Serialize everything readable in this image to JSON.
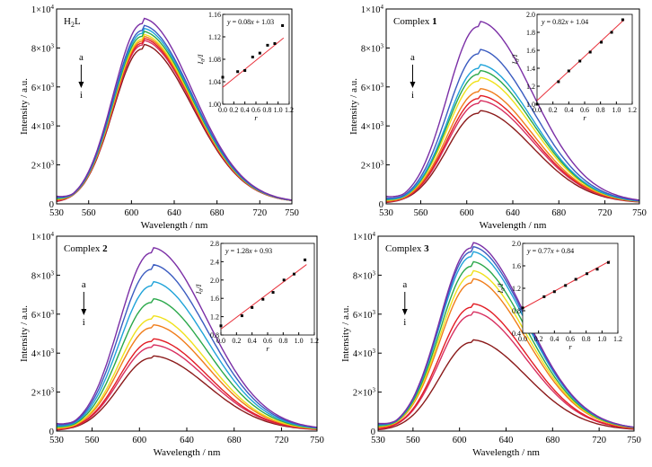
{
  "chart_data": [
    {
      "type": "line",
      "panel_label": "H",
      "panel_label_sub": "2",
      "panel_label_tail": "L",
      "panel_label_bold": "",
      "xlabel": "Wavelength / nm",
      "ylabel": "Intensity / a.u.",
      "xlim": [
        530,
        750
      ],
      "ylim": [
        0,
        10000
      ],
      "xticks": [
        530,
        560,
        600,
        640,
        680,
        720,
        750
      ],
      "ytick_labels": [
        {
          "value": 0,
          "base": "0",
          "exp": ""
        },
        {
          "value": 2000,
          "base": "2×10",
          "exp": "3"
        },
        {
          "value": 4000,
          "base": "4×10",
          "exp": "3"
        },
        {
          "value": 6000,
          "base": "6×10",
          "exp": "3"
        },
        {
          "value": 8000,
          "base": "8×10",
          "exp": "3"
        },
        {
          "value": 10000,
          "base": "1×10",
          "exp": "4"
        }
      ],
      "arrow_top": "a",
      "arrow_bottom": "i",
      "series": [
        {
          "peak": 9250,
          "color": "#7b2fa6"
        },
        {
          "peak": 8900,
          "color": "#3a5bc0"
        },
        {
          "peak": 8750,
          "color": "#1fa3d9"
        },
        {
          "peak": 8600,
          "color": "#2aa84a"
        },
        {
          "peak": 8450,
          "color": "#f0e11c"
        },
        {
          "peak": 8350,
          "color": "#f07d1a"
        },
        {
          "peak": 8250,
          "color": "#e21d25"
        },
        {
          "peak": 8150,
          "color": "#d83060"
        },
        {
          "peak": 7950,
          "color": "#8b1a1a"
        }
      ],
      "inset": {
        "equation_prefix": "y",
        "equation_body": " = 0.08",
        "equation_var": "x",
        "equation_tail": " + 1.03",
        "xlabel": "r",
        "ylabel_base": "I",
        "ylabel_sub": "0",
        "ylabel_tail": "/I",
        "xlim": [
          0.0,
          1.2
        ],
        "ylim": [
          1.0,
          1.16
        ],
        "xticks": [
          0.0,
          0.2,
          0.4,
          0.6,
          0.8,
          1.0,
          1.2
        ],
        "xtick_labels": [
          "0.0",
          "0.2",
          "0.4",
          "0.6",
          "0.8",
          "1.0",
          "1.2"
        ],
        "yticks": [
          1.0,
          1.04,
          1.08,
          1.12,
          1.16
        ],
        "ytick_labels": [
          "1.00",
          "1.04",
          "1.08",
          "1.12",
          "1.16"
        ],
        "slope": 0.08,
        "intercept": 1.03,
        "points": [
          {
            "x": 0.0,
            "y": 1.048
          },
          {
            "x": 0.27,
            "y": 1.058
          },
          {
            "x": 0.4,
            "y": 1.06
          },
          {
            "x": 0.54,
            "y": 1.084
          },
          {
            "x": 0.67,
            "y": 1.091
          },
          {
            "x": 0.81,
            "y": 1.105
          },
          {
            "x": 0.94,
            "y": 1.108
          },
          {
            "x": 1.08,
            "y": 1.14
          }
        ]
      }
    },
    {
      "type": "line",
      "panel_label": "Complex ",
      "panel_label_sub": "",
      "panel_label_tail": "",
      "panel_label_bold": "1",
      "xlabel": "Wavelength / nm",
      "ylabel": "Intensity / a.u.",
      "xlim": [
        530,
        750
      ],
      "ylim": [
        0,
        10000
      ],
      "xticks": [
        530,
        560,
        600,
        640,
        680,
        720,
        750
      ],
      "ytick_labels": [
        {
          "value": 0,
          "base": "0",
          "exp": ""
        },
        {
          "value": 2000,
          "base": "2×10",
          "exp": "3"
        },
        {
          "value": 4000,
          "base": "4×10",
          "exp": "3"
        },
        {
          "value": 6000,
          "base": "6×10",
          "exp": "3"
        },
        {
          "value": 8000,
          "base": "8×10",
          "exp": "3"
        },
        {
          "value": 10000,
          "base": "1×10",
          "exp": "4"
        }
      ],
      "arrow_top": "a",
      "arrow_bottom": "i",
      "series": [
        {
          "peak": 9100,
          "color": "#7b2fa6"
        },
        {
          "peak": 7700,
          "color": "#3a5bc0"
        },
        {
          "peak": 6950,
          "color": "#1fa3d9"
        },
        {
          "peak": 6650,
          "color": "#2aa84a"
        },
        {
          "peak": 6300,
          "color": "#f0e11c"
        },
        {
          "peak": 5750,
          "color": "#f07d1a"
        },
        {
          "peak": 5400,
          "color": "#e21d25"
        },
        {
          "peak": 5150,
          "color": "#d83060"
        },
        {
          "peak": 4650,
          "color": "#8b1a1a"
        }
      ],
      "inset": {
        "equation_prefix": "y",
        "equation_body": " = 0.82",
        "equation_var": "x",
        "equation_tail": " + 1.04",
        "xlabel": "r",
        "ylabel_base": "I",
        "ylabel_sub": "0",
        "ylabel_tail": "/I",
        "xlim": [
          0.0,
          1.2
        ],
        "ylim": [
          1.0,
          2.0
        ],
        "xticks": [
          0.0,
          0.2,
          0.4,
          0.6,
          0.8,
          1.0,
          1.2
        ],
        "xtick_labels": [
          "0.0",
          "0.2",
          "0.4",
          "0.6",
          "0.8",
          "1.0",
          "1.2"
        ],
        "yticks": [
          1.0,
          1.2,
          1.4,
          1.6,
          1.8,
          2.0
        ],
        "ytick_labels": [
          "1.0",
          "1.2",
          "1.4",
          "1.6",
          "1.8",
          "2.0"
        ],
        "slope": 0.82,
        "intercept": 1.04,
        "points": [
          {
            "x": 0.0,
            "y": 1.0
          },
          {
            "x": 0.27,
            "y": 1.25
          },
          {
            "x": 0.4,
            "y": 1.37
          },
          {
            "x": 0.54,
            "y": 1.48
          },
          {
            "x": 0.67,
            "y": 1.58
          },
          {
            "x": 0.81,
            "y": 1.69
          },
          {
            "x": 0.94,
            "y": 1.8
          },
          {
            "x": 1.08,
            "y": 1.94
          }
        ]
      }
    },
    {
      "type": "line",
      "panel_label": "Complex ",
      "panel_label_sub": "",
      "panel_label_tail": "",
      "panel_label_bold": "2",
      "xlabel": "Wavelength / nm",
      "ylabel": "Intensity / a.u.",
      "xlim": [
        530,
        750
      ],
      "ylim": [
        0,
        10000
      ],
      "xticks": [
        530,
        560,
        600,
        640,
        680,
        720,
        750
      ],
      "ytick_labels": [
        {
          "value": 0,
          "base": "0",
          "exp": ""
        },
        {
          "value": 2000,
          "base": "2×10",
          "exp": "3"
        },
        {
          "value": 4000,
          "base": "4×10",
          "exp": "3"
        },
        {
          "value": 6000,
          "base": "6×10",
          "exp": "3"
        },
        {
          "value": 8000,
          "base": "8×10",
          "exp": "3"
        },
        {
          "value": 10000,
          "base": "1×10",
          "exp": "4"
        }
      ],
      "arrow_top": "a",
      "arrow_bottom": "i",
      "series": [
        {
          "peak": 9150,
          "color": "#7b2fa6"
        },
        {
          "peak": 8300,
          "color": "#3a5bc0"
        },
        {
          "peak": 7450,
          "color": "#1fa3d9"
        },
        {
          "peak": 6600,
          "color": "#2aa84a"
        },
        {
          "peak": 5750,
          "color": "#f0e11c"
        },
        {
          "peak": 5300,
          "color": "#f07d1a"
        },
        {
          "peak": 4600,
          "color": "#e21d25"
        },
        {
          "peak": 4300,
          "color": "#d83060"
        },
        {
          "peak": 3750,
          "color": "#8b1a1a"
        }
      ],
      "inset": {
        "equation_prefix": "y",
        "equation_body": " = 1.28",
        "equation_var": "x",
        "equation_tail": " + 0.93",
        "xlabel": "r",
        "ylabel_base": "I",
        "ylabel_sub": "0",
        "ylabel_tail": "/I",
        "xlim": [
          0.0,
          1.2
        ],
        "ylim": [
          0.8,
          2.8
        ],
        "xticks": [
          0.0,
          0.2,
          0.4,
          0.6,
          0.8,
          1.0,
          1.2
        ],
        "xtick_labels": [
          "0.0",
          "0.2",
          "0.4",
          "0.6",
          "0.8",
          "1.0",
          "1.2"
        ],
        "yticks": [
          0.8,
          1.2,
          1.6,
          2.0,
          2.4,
          2.8
        ],
        "ytick_labels": [
          "0.8",
          "1.2",
          "1.6",
          "2.0",
          "2.4",
          "2.8"
        ],
        "slope": 1.28,
        "intercept": 0.93,
        "points": [
          {
            "x": 0.0,
            "y": 1.0
          },
          {
            "x": 0.27,
            "y": 1.22
          },
          {
            "x": 0.4,
            "y": 1.4
          },
          {
            "x": 0.54,
            "y": 1.58
          },
          {
            "x": 0.67,
            "y": 1.73
          },
          {
            "x": 0.81,
            "y": 2.0
          },
          {
            "x": 0.94,
            "y": 2.13
          },
          {
            "x": 1.08,
            "y": 2.44
          }
        ]
      }
    },
    {
      "type": "line",
      "panel_label": "Complex ",
      "panel_label_sub": "",
      "panel_label_tail": "",
      "panel_label_bold": "3",
      "xlabel": "Wavelength / nm",
      "ylabel": "Intensity / a.u.",
      "xlim": [
        530,
        750
      ],
      "ylim": [
        0,
        10000
      ],
      "xticks": [
        530,
        560,
        600,
        640,
        680,
        720,
        750
      ],
      "ytick_labels": [
        {
          "value": 0,
          "base": "0",
          "exp": ""
        },
        {
          "value": 2000,
          "base": "2×10",
          "exp": "3"
        },
        {
          "value": 4000,
          "base": "4×10",
          "exp": "3"
        },
        {
          "value": 6000,
          "base": "6×10",
          "exp": "3"
        },
        {
          "value": 8000,
          "base": "8×10",
          "exp": "3"
        },
        {
          "value": 10000,
          "base": "1×10",
          "exp": "4"
        }
      ],
      "arrow_top": "a",
      "arrow_bottom": "i",
      "series": [
        {
          "peak": 9400,
          "color": "#7b2fa6"
        },
        {
          "peak": 9200,
          "color": "#3a5bc0"
        },
        {
          "peak": 8950,
          "color": "#1fa3d9"
        },
        {
          "peak": 8450,
          "color": "#2aa84a"
        },
        {
          "peak": 8000,
          "color": "#f0e11c"
        },
        {
          "peak": 7600,
          "color": "#f07d1a"
        },
        {
          "peak": 6350,
          "color": "#e21d25"
        },
        {
          "peak": 5950,
          "color": "#d83060"
        },
        {
          "peak": 4550,
          "color": "#8b1a1a"
        }
      ],
      "inset": {
        "equation_prefix": "y",
        "equation_body": " = 0.77",
        "equation_var": "x",
        "equation_tail": " + 0.84",
        "xlabel": "r",
        "ylabel_base": "I",
        "ylabel_sub": "0",
        "ylabel_tail": "/I",
        "xlim": [
          0.0,
          1.2
        ],
        "ylim": [
          0.4,
          2.0
        ],
        "xticks": [
          0.0,
          0.2,
          0.4,
          0.6,
          0.8,
          1.0,
          1.2
        ],
        "xtick_labels": [
          "0.0",
          "0.2",
          "0.4",
          "0.6",
          "0.8",
          "1.0",
          "1.2"
        ],
        "yticks": [
          0.4,
          0.8,
          1.2,
          1.6,
          2.0
        ],
        "ytick_labels": [
          "0.4",
          "0.8",
          "1.2",
          "1.6",
          "2.0"
        ],
        "slope": 0.77,
        "intercept": 0.84,
        "points": [
          {
            "x": 0.0,
            "y": 0.85
          },
          {
            "x": 0.27,
            "y": 1.05
          },
          {
            "x": 0.4,
            "y": 1.14
          },
          {
            "x": 0.54,
            "y": 1.25
          },
          {
            "x": 0.67,
            "y": 1.36
          },
          {
            "x": 0.81,
            "y": 1.46
          },
          {
            "x": 0.94,
            "y": 1.54
          },
          {
            "x": 1.08,
            "y": 1.66
          }
        ]
      }
    }
  ]
}
